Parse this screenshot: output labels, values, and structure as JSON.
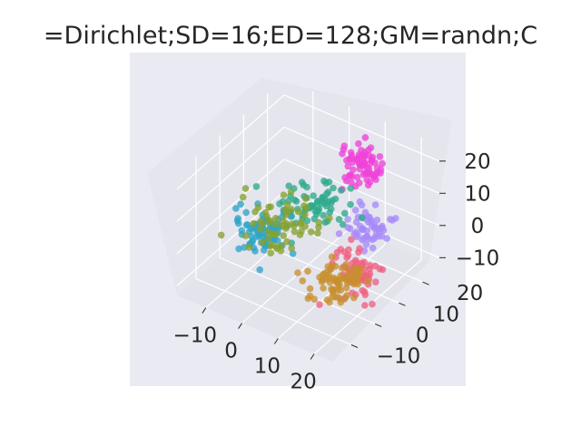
{
  "chart_data": {
    "type": "scatter",
    "projection": "3d",
    "title": "=Dirichlet;SD=16;ED=128;GM=randn;C",
    "xlabel": "",
    "ylabel": "",
    "zlabel": "",
    "x_ticks": [
      "−10",
      "0",
      "10",
      "20"
    ],
    "y_ticks": [
      "−10",
      "0",
      "10",
      "20"
    ],
    "z_ticks": [
      "−10",
      "0",
      "10",
      "20"
    ],
    "xlim": [
      -18,
      25
    ],
    "ylim": [
      -18,
      27
    ],
    "zlim": [
      -13,
      25
    ],
    "grid": true,
    "legend": "none",
    "clusters": [
      {
        "color": "#f042d8",
        "center": [
          8,
          20,
          15
        ],
        "spread": [
          2.6,
          2.6,
          2.6
        ],
        "count": 70
      },
      {
        "color": "#a78bfa",
        "center": [
          14,
          14,
          3
        ],
        "spread": [
          3.0,
          3.0,
          2.2
        ],
        "count": 55
      },
      {
        "color": "#2eaa8c",
        "center": [
          0,
          14,
          2
        ],
        "spread": [
          4.0,
          3.5,
          2.5
        ],
        "count": 70
      },
      {
        "color": "#2ea5c8",
        "center": [
          -10,
          5,
          -4
        ],
        "spread": [
          3.0,
          3.5,
          3.0
        ],
        "count": 80
      },
      {
        "color": "#86a22e",
        "center": [
          -6,
          8,
          -1
        ],
        "spread": [
          4.5,
          4.0,
          3.0
        ],
        "count": 65
      },
      {
        "color": "#f06080",
        "center": [
          16,
          5,
          -5
        ],
        "spread": [
          3.0,
          3.0,
          3.0
        ],
        "count": 70
      },
      {
        "color": "#c8902e",
        "center": [
          13,
          3,
          -7
        ],
        "spread": [
          3.5,
          3.5,
          2.5
        ],
        "count": 70
      }
    ]
  }
}
